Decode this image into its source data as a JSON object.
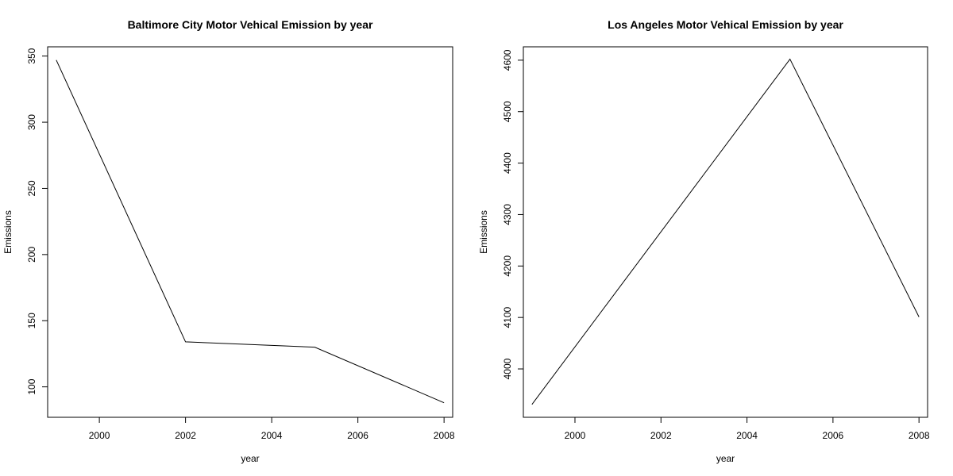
{
  "chart_data": [
    {
      "type": "line",
      "title": "Baltimore City Motor Vehical Emission by year",
      "xlabel": "year",
      "ylabel": "Emissions",
      "xlim": [
        1998.8,
        2008.2
      ],
      "ylim": [
        77,
        357
      ],
      "x_ticks": [
        2000,
        2002,
        2004,
        2006,
        2008
      ],
      "y_ticks": [
        100,
        150,
        200,
        250,
        300,
        350
      ],
      "x": [
        1999,
        2002,
        2005,
        2008
      ],
      "values": [
        347,
        134,
        130,
        88
      ],
      "grid": false,
      "line_color": "#000000"
    },
    {
      "type": "line",
      "title": "Los Angeles Motor Vehical Emission by year",
      "xlabel": "year",
      "ylabel": "Emissions",
      "xlim": [
        1998.8,
        2008.2
      ],
      "ylim": [
        3906,
        4626
      ],
      "x_ticks": [
        2000,
        2002,
        2004,
        2006,
        2008
      ],
      "y_ticks": [
        4000,
        4100,
        4200,
        4300,
        4400,
        4500,
        4600
      ],
      "x": [
        1999,
        2005,
        2008
      ],
      "values": [
        3931,
        4602,
        4101
      ],
      "grid": false,
      "line_color": "#000000"
    }
  ]
}
